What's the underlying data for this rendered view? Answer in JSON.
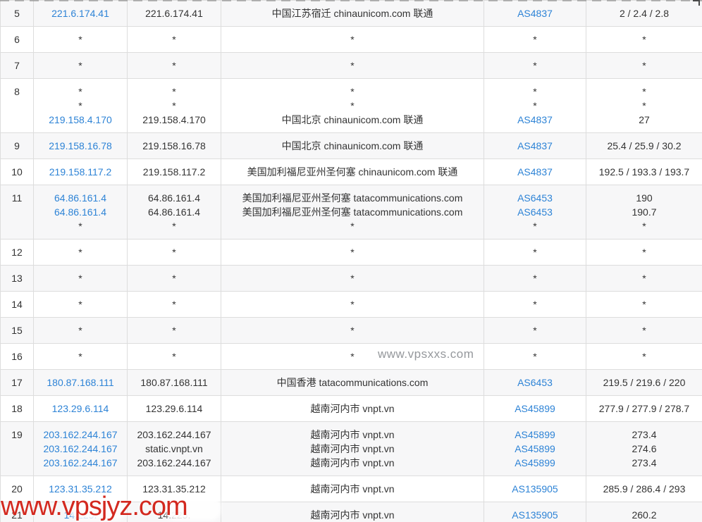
{
  "watermarks": {
    "inline_watermark": "www.vpsxxs.com",
    "bottom_watermark": "www.vpsjyz.com"
  },
  "colors": {
    "link_blue": "#2d83d6",
    "text_dark": "#333333",
    "row_stripe": "#f7f7f8",
    "border": "#dddddd",
    "watermark_red": "#d3291f",
    "watermark_gray": "#95989c"
  },
  "table": {
    "rows": [
      {
        "hop": "5",
        "ip_link": [
          "221.6.174.41"
        ],
        "ip_host": [
          "221.6.174.41"
        ],
        "location": [
          "中国江苏宿迁 chinaunicom.com 联通"
        ],
        "asn": [
          "AS4837"
        ],
        "latency": [
          "2 / 2.4 / 2.8"
        ]
      },
      {
        "hop": "6",
        "ip_link": [
          "*"
        ],
        "ip_host": [
          "*"
        ],
        "location": [
          "*"
        ],
        "asn": [
          "*"
        ],
        "latency": [
          "*"
        ]
      },
      {
        "hop": "7",
        "ip_link": [
          "*"
        ],
        "ip_host": [
          "*"
        ],
        "location": [
          "*"
        ],
        "asn": [
          "*"
        ],
        "latency": [
          "*"
        ]
      },
      {
        "hop": "8",
        "ip_link": [
          "*",
          "*",
          "219.158.4.170"
        ],
        "ip_host": [
          "*",
          "*",
          "219.158.4.170"
        ],
        "location": [
          "*",
          "*",
          "中国北京 chinaunicom.com 联通"
        ],
        "asn": [
          "*",
          "*",
          "AS4837"
        ],
        "latency": [
          "*",
          "*",
          "27"
        ]
      },
      {
        "hop": "9",
        "ip_link": [
          "219.158.16.78"
        ],
        "ip_host": [
          "219.158.16.78"
        ],
        "location": [
          "中国北京 chinaunicom.com 联通"
        ],
        "asn": [
          "AS4837"
        ],
        "latency": [
          "25.4 / 25.9 / 30.2"
        ]
      },
      {
        "hop": "10",
        "ip_link": [
          "219.158.117.2"
        ],
        "ip_host": [
          "219.158.117.2"
        ],
        "location": [
          "美国加利福尼亚州圣何塞 chinaunicom.com 联通"
        ],
        "asn": [
          "AS4837"
        ],
        "latency": [
          "192.5 / 193.3 / 193.7"
        ]
      },
      {
        "hop": "11",
        "ip_link": [
          "64.86.161.4",
          "64.86.161.4",
          "*"
        ],
        "ip_host": [
          "64.86.161.4",
          "64.86.161.4",
          "*"
        ],
        "location": [
          "美国加利福尼亚州圣何塞 tatacommunications.com",
          "美国加利福尼亚州圣何塞 tatacommunications.com",
          "*"
        ],
        "asn": [
          "AS6453",
          "AS6453",
          "*"
        ],
        "latency": [
          "190",
          "190.7",
          "*"
        ]
      },
      {
        "hop": "12",
        "ip_link": [
          "*"
        ],
        "ip_host": [
          "*"
        ],
        "location": [
          "*"
        ],
        "asn": [
          "*"
        ],
        "latency": [
          "*"
        ]
      },
      {
        "hop": "13",
        "ip_link": [
          "*"
        ],
        "ip_host": [
          "*"
        ],
        "location": [
          "*"
        ],
        "asn": [
          "*"
        ],
        "latency": [
          "*"
        ]
      },
      {
        "hop": "14",
        "ip_link": [
          "*"
        ],
        "ip_host": [
          "*"
        ],
        "location": [
          "*"
        ],
        "asn": [
          "*"
        ],
        "latency": [
          "*"
        ]
      },
      {
        "hop": "15",
        "ip_link": [
          "*"
        ],
        "ip_host": [
          "*"
        ],
        "location": [
          "*"
        ],
        "asn": [
          "*"
        ],
        "latency": [
          "*"
        ]
      },
      {
        "hop": "16",
        "ip_link": [
          "*"
        ],
        "ip_host": [
          "*"
        ],
        "location": [
          "*"
        ],
        "asn": [
          "*"
        ],
        "latency": [
          "*"
        ]
      },
      {
        "hop": "17",
        "ip_link": [
          "180.87.168.111"
        ],
        "ip_host": [
          "180.87.168.111"
        ],
        "location": [
          "中国香港 tatacommunications.com"
        ],
        "asn": [
          "AS6453"
        ],
        "latency": [
          "219.5 / 219.6 / 220"
        ]
      },
      {
        "hop": "18",
        "ip_link": [
          "123.29.6.114"
        ],
        "ip_host": [
          "123.29.6.114"
        ],
        "location": [
          "越南河内市 vnpt.vn"
        ],
        "asn": [
          "AS45899"
        ],
        "latency": [
          "277.9 / 277.9 / 278.7"
        ]
      },
      {
        "hop": "19",
        "ip_link": [
          "203.162.244.167",
          "203.162.244.167",
          "203.162.244.167"
        ],
        "ip_host": [
          "203.162.244.167",
          "static.vnpt.vn",
          "203.162.244.167"
        ],
        "location": [
          "越南河内市 vnpt.vn",
          "越南河内市 vnpt.vn",
          "越南河内市 vnpt.vn"
        ],
        "asn": [
          "AS45899",
          "AS45899",
          "AS45899"
        ],
        "latency": [
          "273.4",
          "274.6",
          "273.4"
        ]
      },
      {
        "hop": "20",
        "ip_link": [
          "123.31.35.212"
        ],
        "ip_host": [
          "123.31.35.212"
        ],
        "location": [
          "越南河内市 vnpt.vn"
        ],
        "asn": [
          "AS135905"
        ],
        "latency": [
          "285.9 / 286.4 / 293"
        ]
      },
      {
        "hop": "21",
        "ip_link": [
          "14.225."
        ],
        "ip_host": [
          "14.225."
        ],
        "location": [
          "越南河内市 vnpt.vn"
        ],
        "asn": [
          "AS135905"
        ],
        "latency": [
          "260.2"
        ]
      }
    ]
  }
}
